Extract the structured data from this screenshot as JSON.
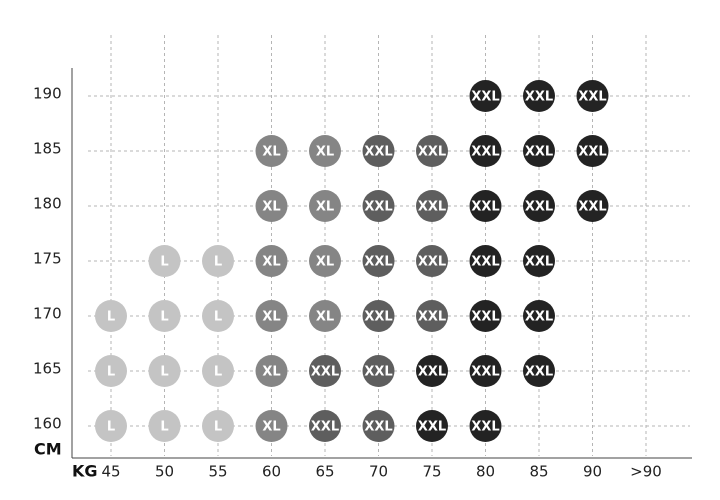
{
  "grid": {
    "x_unit": "KG",
    "y_unit": "CM",
    "columns": [
      "45",
      "50",
      "55",
      "60",
      "65",
      "70",
      "75",
      "80",
      "85",
      "90",
      ">90"
    ],
    "rows": [
      {
        "label": "190",
        "cells": [
          null,
          null,
          null,
          null,
          null,
          null,
          null,
          {
            "label": "XXL",
            "color": "#232323"
          },
          {
            "label": "XXL",
            "color": "#232323"
          },
          {
            "label": "XXL",
            "color": "#232323"
          },
          null
        ]
      },
      {
        "label": "185",
        "cells": [
          null,
          null,
          null,
          {
            "label": "XL",
            "color": "#858585"
          },
          {
            "label": "XL",
            "color": "#858585"
          },
          {
            "label": "XXL",
            "color": "#5e5e5e"
          },
          {
            "label": "XXL",
            "color": "#5e5e5e"
          },
          {
            "label": "XXL",
            "color": "#232323"
          },
          {
            "label": "XXL",
            "color": "#232323"
          },
          {
            "label": "XXL",
            "color": "#232323"
          },
          null
        ]
      },
      {
        "label": "180",
        "cells": [
          null,
          null,
          null,
          {
            "label": "XL",
            "color": "#858585"
          },
          {
            "label": "XL",
            "color": "#858585"
          },
          {
            "label": "XXL",
            "color": "#5e5e5e"
          },
          {
            "label": "XXL",
            "color": "#5e5e5e"
          },
          {
            "label": "XXL",
            "color": "#232323"
          },
          {
            "label": "XXL",
            "color": "#232323"
          },
          {
            "label": "XXL",
            "color": "#232323"
          },
          null
        ]
      },
      {
        "label": "175",
        "cells": [
          null,
          {
            "label": "L",
            "color": "#c4c4c4"
          },
          {
            "label": "L",
            "color": "#c4c4c4"
          },
          {
            "label": "XL",
            "color": "#858585"
          },
          {
            "label": "XL",
            "color": "#858585"
          },
          {
            "label": "XXL",
            "color": "#5e5e5e"
          },
          {
            "label": "XXL",
            "color": "#5e5e5e"
          },
          {
            "label": "XXL",
            "color": "#232323"
          },
          {
            "label": "XXL",
            "color": "#232323"
          },
          null,
          null
        ]
      },
      {
        "label": "170",
        "cells": [
          {
            "label": "L",
            "color": "#c4c4c4"
          },
          {
            "label": "L",
            "color": "#c4c4c4"
          },
          {
            "label": "L",
            "color": "#c4c4c4"
          },
          {
            "label": "XL",
            "color": "#858585"
          },
          {
            "label": "XL",
            "color": "#858585"
          },
          {
            "label": "XXL",
            "color": "#5e5e5e"
          },
          {
            "label": "XXL",
            "color": "#5e5e5e"
          },
          {
            "label": "XXL",
            "color": "#232323"
          },
          {
            "label": "XXL",
            "color": "#232323"
          },
          null,
          null
        ]
      },
      {
        "label": "165",
        "cells": [
          {
            "label": "L",
            "color": "#c4c4c4"
          },
          {
            "label": "L",
            "color": "#c4c4c4"
          },
          {
            "label": "L",
            "color": "#c4c4c4"
          },
          {
            "label": "XL",
            "color": "#858585"
          },
          {
            "label": "XXL",
            "color": "#5e5e5e"
          },
          {
            "label": "XXL",
            "color": "#5e5e5e"
          },
          {
            "label": "XXL",
            "color": "#232323"
          },
          {
            "label": "XXL",
            "color": "#232323"
          },
          {
            "label": "XXL",
            "color": "#232323"
          },
          null,
          null
        ]
      },
      {
        "label": "160",
        "cells": [
          {
            "label": "L",
            "color": "#c4c4c4"
          },
          {
            "label": "L",
            "color": "#c4c4c4"
          },
          {
            "label": "L",
            "color": "#c4c4c4"
          },
          {
            "label": "XL",
            "color": "#858585"
          },
          {
            "label": "XXL",
            "color": "#5e5e5e"
          },
          {
            "label": "XXL",
            "color": "#5e5e5e"
          },
          {
            "label": "XXL",
            "color": "#232323"
          },
          {
            "label": "XXL",
            "color": "#232323"
          },
          null,
          null,
          null
        ]
      }
    ]
  }
}
